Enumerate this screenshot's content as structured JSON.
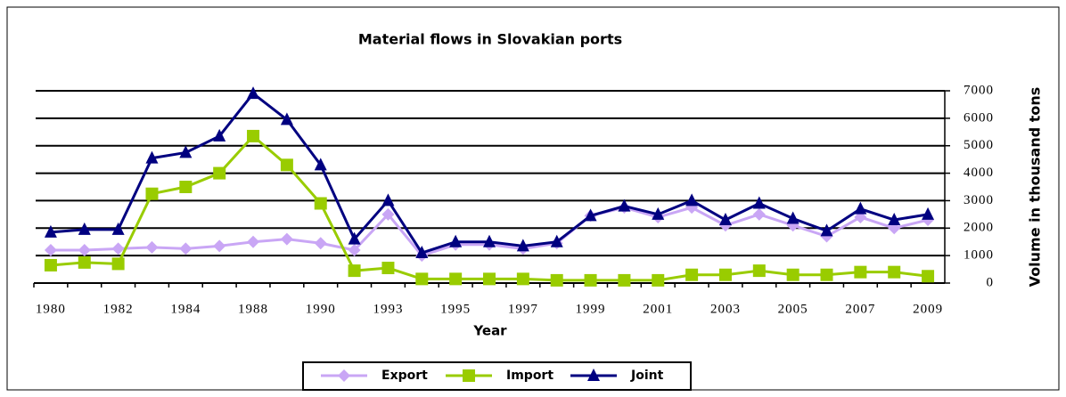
{
  "chart_data": {
    "type": "line",
    "title": "Material flows in Slovakian ports",
    "x_label": "Year",
    "y_label": "Volume in thousand tons",
    "categories": [
      "1980",
      null,
      "1982",
      null,
      "1984",
      null,
      "1988",
      null,
      "1990",
      null,
      "1993",
      null,
      "1995",
      null,
      "1997",
      null,
      "1999",
      null,
      "2001",
      null,
      "2003",
      null,
      "2005",
      null,
      "2007",
      null,
      "2009"
    ],
    "series": [
      {
        "name": "Export",
        "color": "#c9a6f5",
        "marker": "diamond",
        "values": [
          1200,
          1200,
          1250,
          1300,
          1250,
          1350,
          1500,
          1600,
          1450,
          1200,
          2500,
          1000,
          1400,
          1400,
          1250,
          1450,
          2450,
          2750,
          2400,
          2750,
          2100,
          2500,
          2100,
          1700,
          2400,
          2000,
          2300
        ]
      },
      {
        "name": "Import",
        "color": "#99cc00",
        "marker": "square",
        "values": [
          650,
          750,
          700,
          3250,
          3500,
          4000,
          5350,
          4300,
          2900,
          450,
          550,
          150,
          150,
          150,
          150,
          100,
          100,
          100,
          100,
          300,
          300,
          450,
          300,
          300,
          400,
          400,
          250
        ]
      },
      {
        "name": "Joint",
        "color": "#000080",
        "marker": "triangle",
        "values": [
          1850,
          1950,
          1950,
          4550,
          4750,
          5350,
          6900,
          5950,
          4300,
          1600,
          3000,
          1100,
          1500,
          1500,
          1350,
          1500,
          2450,
          2800,
          2500,
          3000,
          2300,
          2900,
          2350,
          1900,
          2700,
          2300,
          2500
        ]
      }
    ],
    "ylim": [
      0,
      7000
    ],
    "yticks": [
      0,
      1000,
      2000,
      3000,
      4000,
      5000,
      6000,
      7000
    ],
    "grid": true,
    "legend": "bottom"
  }
}
